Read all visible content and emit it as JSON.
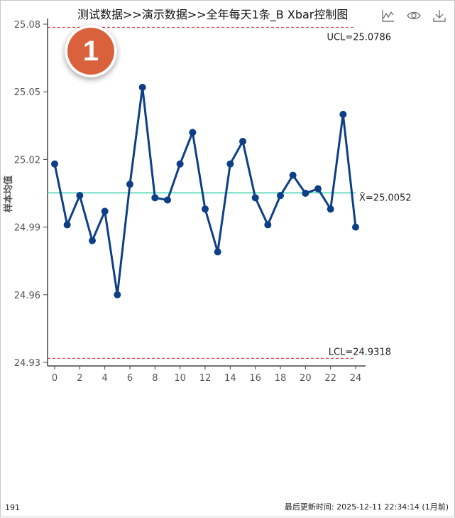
{
  "header": {
    "title": "测试数据>>演示数据>>全年每天1条_B Xbar控制图",
    "badge": "1"
  },
  "toolbar": {
    "icons": [
      "line-chart-icon",
      "eye-icon",
      "download-icon"
    ]
  },
  "footer": {
    "count": "191",
    "updated": "最后更新时间: 2025-12-11 22:34:14 (1月前)"
  },
  "chart_data": {
    "type": "line",
    "title": "测试数据>>演示数据>>全年每天1条_B Xbar控制图",
    "xlabel": "",
    "ylabel": "样本均值",
    "x": [
      0,
      1,
      2,
      3,
      4,
      5,
      6,
      7,
      8,
      9,
      10,
      11,
      12,
      13,
      14,
      15,
      16,
      17,
      18,
      19,
      20,
      21,
      22,
      23,
      24
    ],
    "series": [
      {
        "name": "",
        "values": [
          25.018,
          24.991,
          25.004,
          24.984,
          24.997,
          24.96,
          25.009,
          25.052,
          25.003,
          25.002,
          25.018,
          25.032,
          24.998,
          24.979,
          25.018,
          25.028,
          25.003,
          24.991,
          25.004,
          25.013,
          25.005,
          25.007,
          24.998,
          25.04,
          24.99
        ]
      }
    ],
    "xlim": [
      0,
      24
    ],
    "ylim": [
      24.93,
      25.08
    ],
    "xticks": [
      "0",
      "2",
      "4",
      "6",
      "8",
      "10",
      "12",
      "14",
      "16",
      "18",
      "20",
      "22",
      "24"
    ],
    "yticks": [
      "24.93",
      "24.96",
      "24.99",
      "25.02",
      "25.05",
      "25.08"
    ],
    "ucl": 25.0786,
    "center": 25.0052,
    "lcl": 24.9318,
    "ucl_label": "UCL=25.0786",
    "center_label": "X̄=25.0052",
    "lcl_label": "LCL=24.9318",
    "grid": false,
    "colors": {
      "series": "#0d3f86",
      "center": "#6fdcc4",
      "limits": "#d93b3b",
      "badge": "#d9623d"
    }
  }
}
